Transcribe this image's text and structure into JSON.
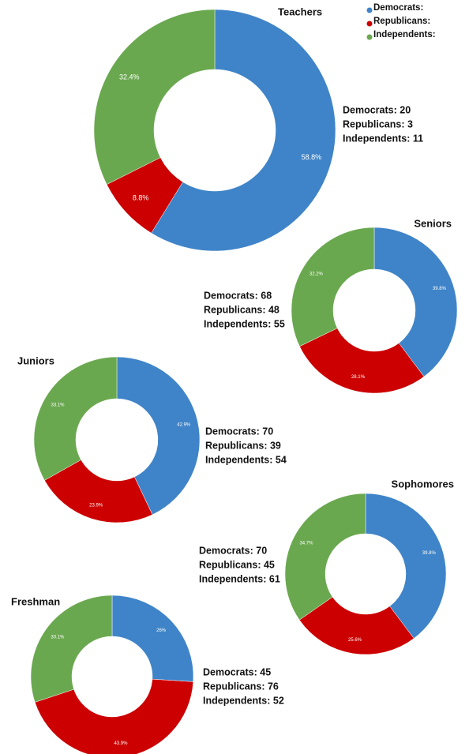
{
  "chart_data": [
    {
      "type": "pie",
      "title": "Teachers",
      "values": [
        58.8,
        8.8,
        32.4
      ],
      "value_labels": [
        "58.8%",
        "8.8%",
        "32.4%"
      ],
      "colors": [
        "#3f84c8",
        "#cc0000",
        "#6aa84f"
      ],
      "annotations": [
        "Democrats: 20",
        "Republicans: 3",
        "Independents: 11"
      ],
      "legend": [
        {
          "name": "Democrats:",
          "color": "#3f84c8"
        },
        {
          "name": "Republicans:",
          "color": "#cc0000"
        },
        {
          "name": "Independents:",
          "color": "#6aa84f"
        }
      ]
    },
    {
      "type": "pie",
      "title": "Seniors",
      "values": [
        39.8,
        28.1,
        32.2
      ],
      "value_labels": [
        "39.8%",
        "28.1%",
        "32.2%"
      ],
      "colors": [
        "#3f84c8",
        "#cc0000",
        "#6aa84f"
      ],
      "annotations": [
        "Democrats: 68",
        "Republicans: 48",
        "Independents: 55"
      ]
    },
    {
      "type": "pie",
      "title": "Juniors",
      "values": [
        42.9,
        23.9,
        33.1
      ],
      "value_labels": [
        "42.9%",
        "23.9%",
        "33.1%"
      ],
      "colors": [
        "#3f84c8",
        "#cc0000",
        "#6aa84f"
      ],
      "annotations": [
        "Democrats: 70",
        "Republicans: 39",
        "Independents: 54"
      ]
    },
    {
      "type": "pie",
      "title": "Sophomores",
      "values": [
        39.8,
        25.6,
        34.7
      ],
      "value_labels": [
        "39.8%",
        "25.6%",
        "34.7%"
      ],
      "colors": [
        "#3f84c8",
        "#cc0000",
        "#6aa84f"
      ],
      "annotations": [
        "Democrats: 70",
        "Republicans: 45",
        "Independents: 61"
      ]
    },
    {
      "type": "pie",
      "title": "Freshman",
      "values": [
        26,
        43.9,
        30.1
      ],
      "value_labels": [
        "26%",
        "43.9%",
        "30.1%"
      ],
      "colors": [
        "#3f84c8",
        "#cc0000",
        "#6aa84f"
      ],
      "annotations": [
        "Democrats: 45",
        "Republicans: 76",
        "Independents: 52"
      ]
    }
  ]
}
